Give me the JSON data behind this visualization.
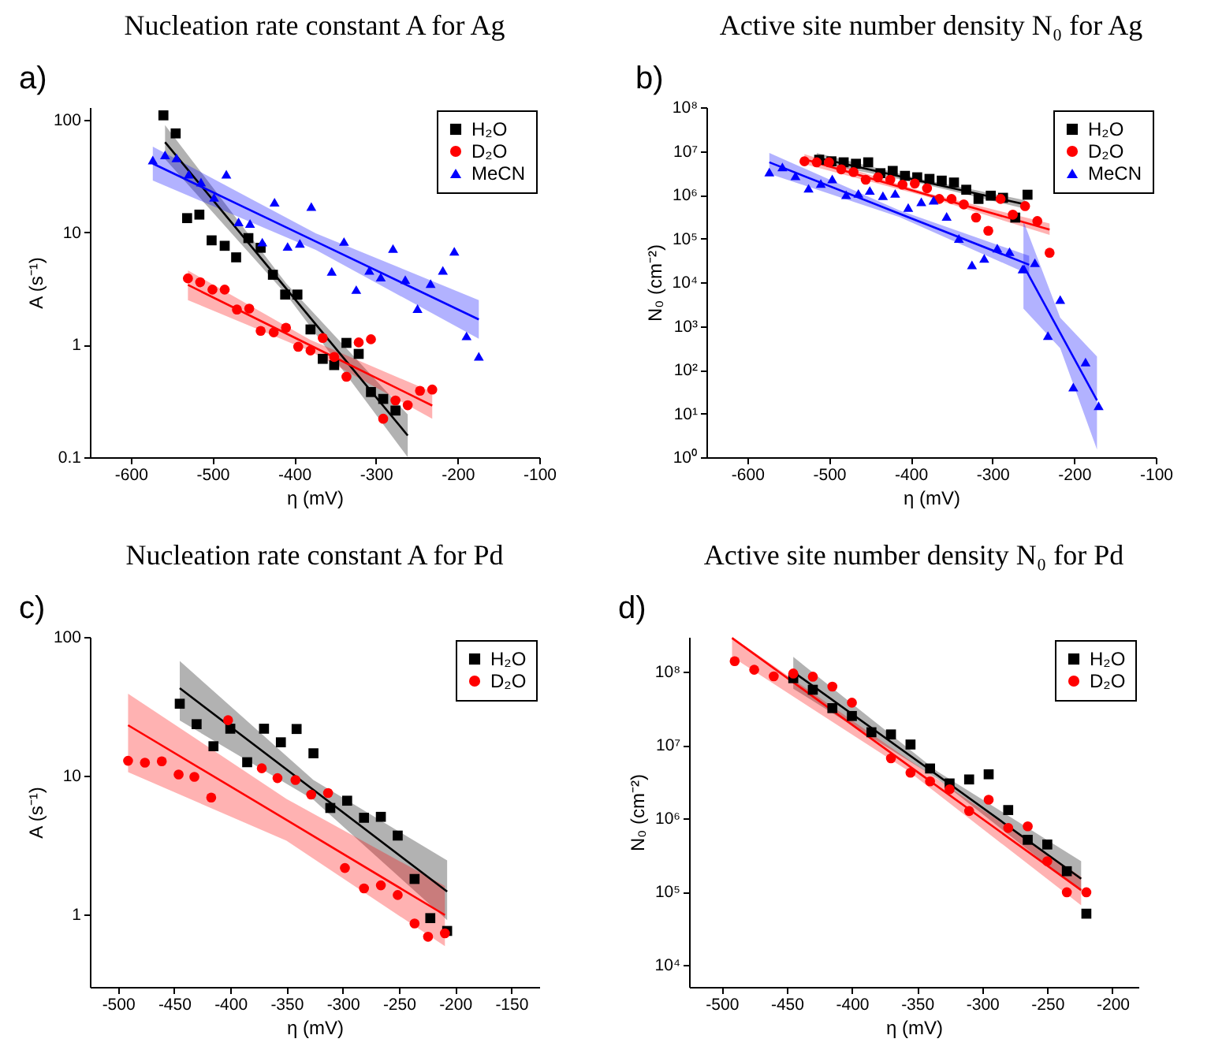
{
  "chart_data": [
    {
      "type": "scatter",
      "title": "Nucleation rate constant A for Ag",
      "xlabel": "η (mV)",
      "ylabel": "A (s⁻¹)",
      "annotations": [
        "a)"
      ],
      "log": "y",
      "legend": "top right",
      "xlim": [
        -650,
        -100
      ],
      "xticks": [
        -600,
        -500,
        -400,
        -300,
        -200,
        -100
      ],
      "ylim": [
        0.1,
        130
      ],
      "yticks": [
        0.1,
        1,
        10,
        100
      ],
      "series": [
        {
          "name": "H₂O",
          "color": "#000000",
          "marker": "square",
          "x": [
            -560,
            -545,
            -531,
            -516,
            -501,
            -485,
            -471,
            -456,
            -441,
            -426,
            -411,
            -396,
            -380,
            -365,
            -351,
            -336,
            -321,
            -306,
            -291,
            -276
          ],
          "values": [
            110,
            76,
            13.4,
            14.4,
            8.5,
            7.6,
            6.0,
            8.9,
            7.3,
            4.2,
            2.8,
            2.8,
            1.37,
            0.75,
            0.66,
            1.04,
            0.83,
            0.38,
            0.33,
            0.26
          ]
        },
        {
          "name": "D₂O",
          "color": "#ff0000",
          "marker": "circle",
          "x": [
            -530,
            -515,
            -500,
            -485,
            -470,
            -455,
            -441,
            -425,
            -410,
            -395,
            -380,
            -365,
            -351,
            -336,
            -321,
            -306,
            -291,
            -276,
            -261,
            -246,
            -231
          ],
          "values": [
            3.9,
            3.6,
            3.1,
            3.1,
            2.06,
            2.1,
            1.33,
            1.29,
            1.42,
            0.96,
            0.89,
            1.15,
            0.78,
            0.52,
            1.05,
            1.12,
            0.22,
            0.32,
            0.29,
            0.39,
            0.4
          ]
        },
        {
          "name": "MeCN",
          "color": "#0000ff",
          "marker": "triangle",
          "x": [
            -573,
            -558,
            -544,
            -529,
            -514,
            -498,
            -483,
            -468,
            -454,
            -439,
            -424,
            -408,
            -393,
            -379,
            -354,
            -339,
            -324,
            -308,
            -294,
            -279,
            -264,
            -249,
            -233,
            -218,
            -204,
            -189,
            -174
          ],
          "values": [
            44,
            49,
            46,
            33,
            28,
            20.5,
            33,
            12.4,
            12,
            8.2,
            18.6,
            7.5,
            8,
            17,
            4.5,
            8.3,
            3.1,
            4.6,
            4,
            7.2,
            3.8,
            2.1,
            3.5,
            4.6,
            6.8,
            1.2,
            0.79
          ]
        },
        {
          "type": "line",
          "color": "#000000",
          "x": [
            -558,
            -409.5,
            -261
          ],
          "values": [
            63.5,
            3.15,
            0.156
          ],
          "lower": [
            45,
            2.8,
            0.1
          ],
          "upper": [
            90,
            3.5,
            0.24
          ]
        },
        {
          "type": "line",
          "color": "#ff0000",
          "x": [
            -530,
            -380.5,
            -231
          ],
          "values": [
            3.41,
            0.99,
            0.288
          ],
          "lower": [
            2.5,
            0.88,
            0.22
          ],
          "upper": [
            4.6,
            1.11,
            0.38
          ]
        },
        {
          "type": "line",
          "color": "#0000ff",
          "x": [
            -573,
            -373.5,
            -174
          ],
          "values": [
            41,
            8.3,
            1.68
          ],
          "lower": [
            29,
            7.0,
            1.13
          ],
          "upper": [
            58,
            9.8,
            2.5
          ]
        }
      ]
    },
    {
      "type": "scatter",
      "title": "Active site number density N₀ for Ag",
      "xlabel": "η (mV)",
      "ylabel": "N₀ (cm⁻²)",
      "annotations": [
        "b)"
      ],
      "log": "y",
      "legend": "top right",
      "xlim": [
        -650,
        -100
      ],
      "xticks": [
        -600,
        -500,
        -400,
        -300,
        -200,
        -100
      ],
      "ylim": [
        1,
        100000000.0
      ],
      "yticks": [
        {
          "value": 1,
          "label": "10⁰"
        },
        {
          "value": 10,
          "label": "10¹"
        },
        {
          "value": 100,
          "label": "10²"
        },
        {
          "value": 1000,
          "label": "10³"
        },
        {
          "value": 10000,
          "label": "10⁴"
        },
        {
          "value": 100000,
          "label": "10⁵"
        },
        {
          "value": 1000000,
          "label": "10⁶"
        },
        {
          "value": 10000000,
          "label": "10⁷"
        },
        {
          "value": 100000000,
          "label": "10⁸"
        }
      ],
      "series": [
        {
          "name": "H₂O",
          "color": "#000000",
          "marker": "square",
          "x": [
            -512,
            -497,
            -482,
            -467,
            -452,
            -437,
            -422,
            -407,
            -392,
            -377,
            -362,
            -347,
            -332,
            -317,
            -302,
            -287,
            -272,
            -257
          ],
          "values": [
            6300000.0,
            5800000.0,
            5500000.0,
            5100000.0,
            5500000.0,
            3100000.0,
            3500000.0,
            2700000.0,
            2500000.0,
            2300000.0,
            2100000.0,
            1900000.0,
            1300000.0,
            800000.0,
            950000.0,
            850000.0,
            300000.0,
            1000000.0
          ]
        },
        {
          "name": "D₂O",
          "color": "#ff0000",
          "marker": "circle",
          "x": [
            -530,
            -515,
            -500,
            -485,
            -470,
            -455,
            -440,
            -425,
            -410,
            -395,
            -380,
            -365,
            -350,
            -335,
            -320,
            -305,
            -290,
            -275,
            -260,
            -245,
            -230
          ],
          "values": [
            5800000.0,
            5500000.0,
            5500000.0,
            3800000.0,
            3300000.0,
            2200000.0,
            2500000.0,
            2200000.0,
            1700000.0,
            1800000.0,
            1400000.0,
            800000.0,
            800000.0,
            600000.0,
            300000.0,
            150000.0,
            800000.0,
            350000.0,
            550000.0,
            250000.0,
            47000.0
          ]
        },
        {
          "name": "MeCN",
          "color": "#0000ff",
          "marker": "triangle",
          "x": [
            -573,
            -557,
            -541,
            -525,
            -510,
            -496,
            -479,
            -464,
            -450,
            -434,
            -419,
            -403,
            -387,
            -372,
            -356,
            -341,
            -325,
            -310,
            -294,
            -279,
            -263,
            -248,
            -232,
            -217,
            -201,
            -186,
            -170
          ],
          "values": [
            3300000.0,
            4300000.0,
            2700000.0,
            1400000.0,
            1800000.0,
            2300000.0,
            1000000.0,
            1070000.0,
            1250000.0,
            950000.0,
            1070000.0,
            510000.0,
            690000.0,
            750000.0,
            320000.0,
            100000.0,
            25000.0,
            35000.0,
            60000.0,
            50000.0,
            20000.0,
            28000.0,
            600,
            4000,
            40,
            150,
            15
          ]
        },
        {
          "type": "line",
          "color": "#000000",
          "x": [
            -515,
            -387.5,
            -260
          ],
          "values": [
            7000000.0,
            2050000.0,
            600000.0
          ],
          "lower": [
            5500000.0,
            1800000.0,
            480000.0
          ],
          "upper": [
            9000000.0,
            2300000.0,
            750000.0
          ]
        },
        {
          "type": "line",
          "color": "#ff0000",
          "x": [
            -530,
            -380,
            -230
          ],
          "values": [
            6500000.0,
            1000000.0,
            160000.0
          ],
          "lower": [
            5000000.0,
            900000.0,
            120000.0
          ],
          "upper": [
            8500000.0,
            1100000.0,
            220000.0
          ]
        },
        {
          "type": "line",
          "color": "#0000ff",
          "x": [
            -573,
            -414,
            -255
          ],
          "values": [
            5500000.0,
            370000.0,
            25000.0
          ],
          "lower": [
            3000000.0,
            310000.0,
            15000.0
          ],
          "upper": [
            9000000.0,
            440000.0,
            40000.0
          ]
        },
        {
          "type": "line",
          "color": "#0000ff",
          "x": [
            -262,
            -217,
            -172
          ],
          "values": [
            24000.0,
            690,
            20
          ],
          "lower": [
            2500,
            310,
            1.5
          ],
          "upper": [
            250000.0,
            1550,
            200
          ]
        }
      ]
    },
    {
      "type": "scatter",
      "title": "Nucleation rate constant A for Pd",
      "xlabel": "η (mV)",
      "ylabel": "A (s⁻¹)",
      "annotations": [
        "c)"
      ],
      "log": "y",
      "legend": "top right",
      "xlim": [
        -525,
        -125
      ],
      "xticks": [
        -500,
        -450,
        -400,
        -350,
        -300,
        -250,
        -200,
        -150
      ],
      "ylim": [
        0.3,
        100
      ],
      "yticks": [
        1,
        10,
        100
      ],
      "series": [
        {
          "name": "H₂O",
          "color": "#000000",
          "marker": "square",
          "x": [
            -445,
            -430,
            -415,
            -400,
            -385,
            -370,
            -355,
            -341,
            -326,
            -311,
            -296,
            -281,
            -266,
            -251,
            -236,
            -222,
            -207
          ],
          "values": [
            33,
            23.5,
            16.3,
            21.8,
            12.5,
            21.8,
            17.4,
            21.7,
            14.5,
            5.85,
            6.6,
            4.97,
            5.05,
            3.7,
            1.8,
            0.94,
            0.76
          ]
        },
        {
          "name": "D₂O",
          "color": "#ff0000",
          "marker": "circle",
          "x": [
            -491,
            -476,
            -461,
            -446,
            -432,
            -417,
            -402,
            -372,
            -358,
            -342,
            -328,
            -313,
            -298,
            -281,
            -266,
            -251,
            -236,
            -224,
            -209
          ],
          "values": [
            12.8,
            12.4,
            12.7,
            10.2,
            9.8,
            6.95,
            25.1,
            11.3,
            9.6,
            9.3,
            7.3,
            7.5,
            2.16,
            1.54,
            1.62,
            1.38,
            0.86,
            0.69,
            0.73
          ]
        },
        {
          "type": "line",
          "color": "#000000",
          "x": [
            -445,
            -326,
            -207
          ],
          "values": [
            42.7,
            7.9,
            1.46
          ],
          "lower": [
            25,
            6.7,
            0.91
          ],
          "upper": [
            67,
            9.3,
            2.45
          ]
        },
        {
          "type": "line",
          "color": "#ff0000",
          "x": [
            -491,
            -350,
            -209
          ],
          "values": [
            23.1,
            4.8,
            0.99
          ],
          "lower": [
            10.6,
            3.4,
            0.59
          ],
          "upper": [
            39,
            6.8,
            1.6
          ]
        }
      ]
    },
    {
      "type": "scatter",
      "title": "Active site number density N₀ for Pd",
      "xlabel": "η (mV)",
      "ylabel": "N₀ (cm⁻²)",
      "annotations": [
        "d)"
      ],
      "log": "y",
      "legend": "top right",
      "xlim": [
        -525,
        -180
      ],
      "xticks": [
        -500,
        -450,
        -400,
        -350,
        -300,
        -250,
        -200
      ],
      "ylim": [
        5000,
        300000000.0
      ],
      "yticks": [
        {
          "value": 10000,
          "label": "10⁴"
        },
        {
          "value": 100000,
          "label": "10⁵"
        },
        {
          "value": 1000000,
          "label": "10⁶"
        },
        {
          "value": 10000000,
          "label": "10⁷"
        },
        {
          "value": 100000000,
          "label": "10⁸"
        }
      ],
      "series": [
        {
          "name": "H₂O",
          "color": "#000000",
          "marker": "square",
          "x": [
            -445,
            -430,
            -415,
            -400,
            -385,
            -370,
            -355,
            -340,
            -325,
            -310,
            -295,
            -280,
            -265,
            -250,
            -235,
            -220
          ],
          "values": [
            82000000.0,
            57000000.0,
            32000000.0,
            25000000.0,
            15000000.0,
            14000000.0,
            10200000.0,
            4800000.0,
            3000000.0,
            3400000.0,
            4000000.0,
            1300000.0,
            510000.0,
            440000.0,
            190000.0,
            50000.0
          ]
        },
        {
          "name": "D₂O",
          "color": "#ff0000",
          "marker": "circle",
          "x": [
            -490,
            -475,
            -460,
            -445,
            -430,
            -415,
            -400,
            -370,
            -355,
            -340,
            -325,
            -310,
            -295,
            -280,
            -265,
            -250,
            -235,
            -220
          ],
          "values": [
            140000000.0,
            107000000.0,
            87000000.0,
            95000000.0,
            86000000.0,
            63000000.0,
            38000000.0,
            6600000.0,
            4200000.0,
            3200000.0,
            2500000.0,
            1260000.0,
            1800000.0,
            740000.0,
            780000.0,
            260000.0,
            98000.0,
            98000.0
          ]
        },
        {
          "type": "line",
          "color": "#000000",
          "x": [
            -445,
            -334.5,
            -224
          ],
          "values": [
            100000000.0,
            3900000.0,
            150000.0
          ],
          "lower": [
            59000000.0,
            3500000.0,
            100000.0
          ],
          "upper": [
            160000000.0,
            4400000.0,
            260000.0
          ]
        },
        {
          "type": "line",
          "color": "#ff0000",
          "x": [
            -492,
            -358,
            -224
          ],
          "values": [
            290000000.0,
            5500000.0,
            105000.0
          ],
          "lower": [
            160000000.0,
            4600000.0,
            65000.0
          ],
          "upper": [
            300000000.0,
            6600000.0,
            160000.0
          ]
        }
      ]
    }
  ]
}
